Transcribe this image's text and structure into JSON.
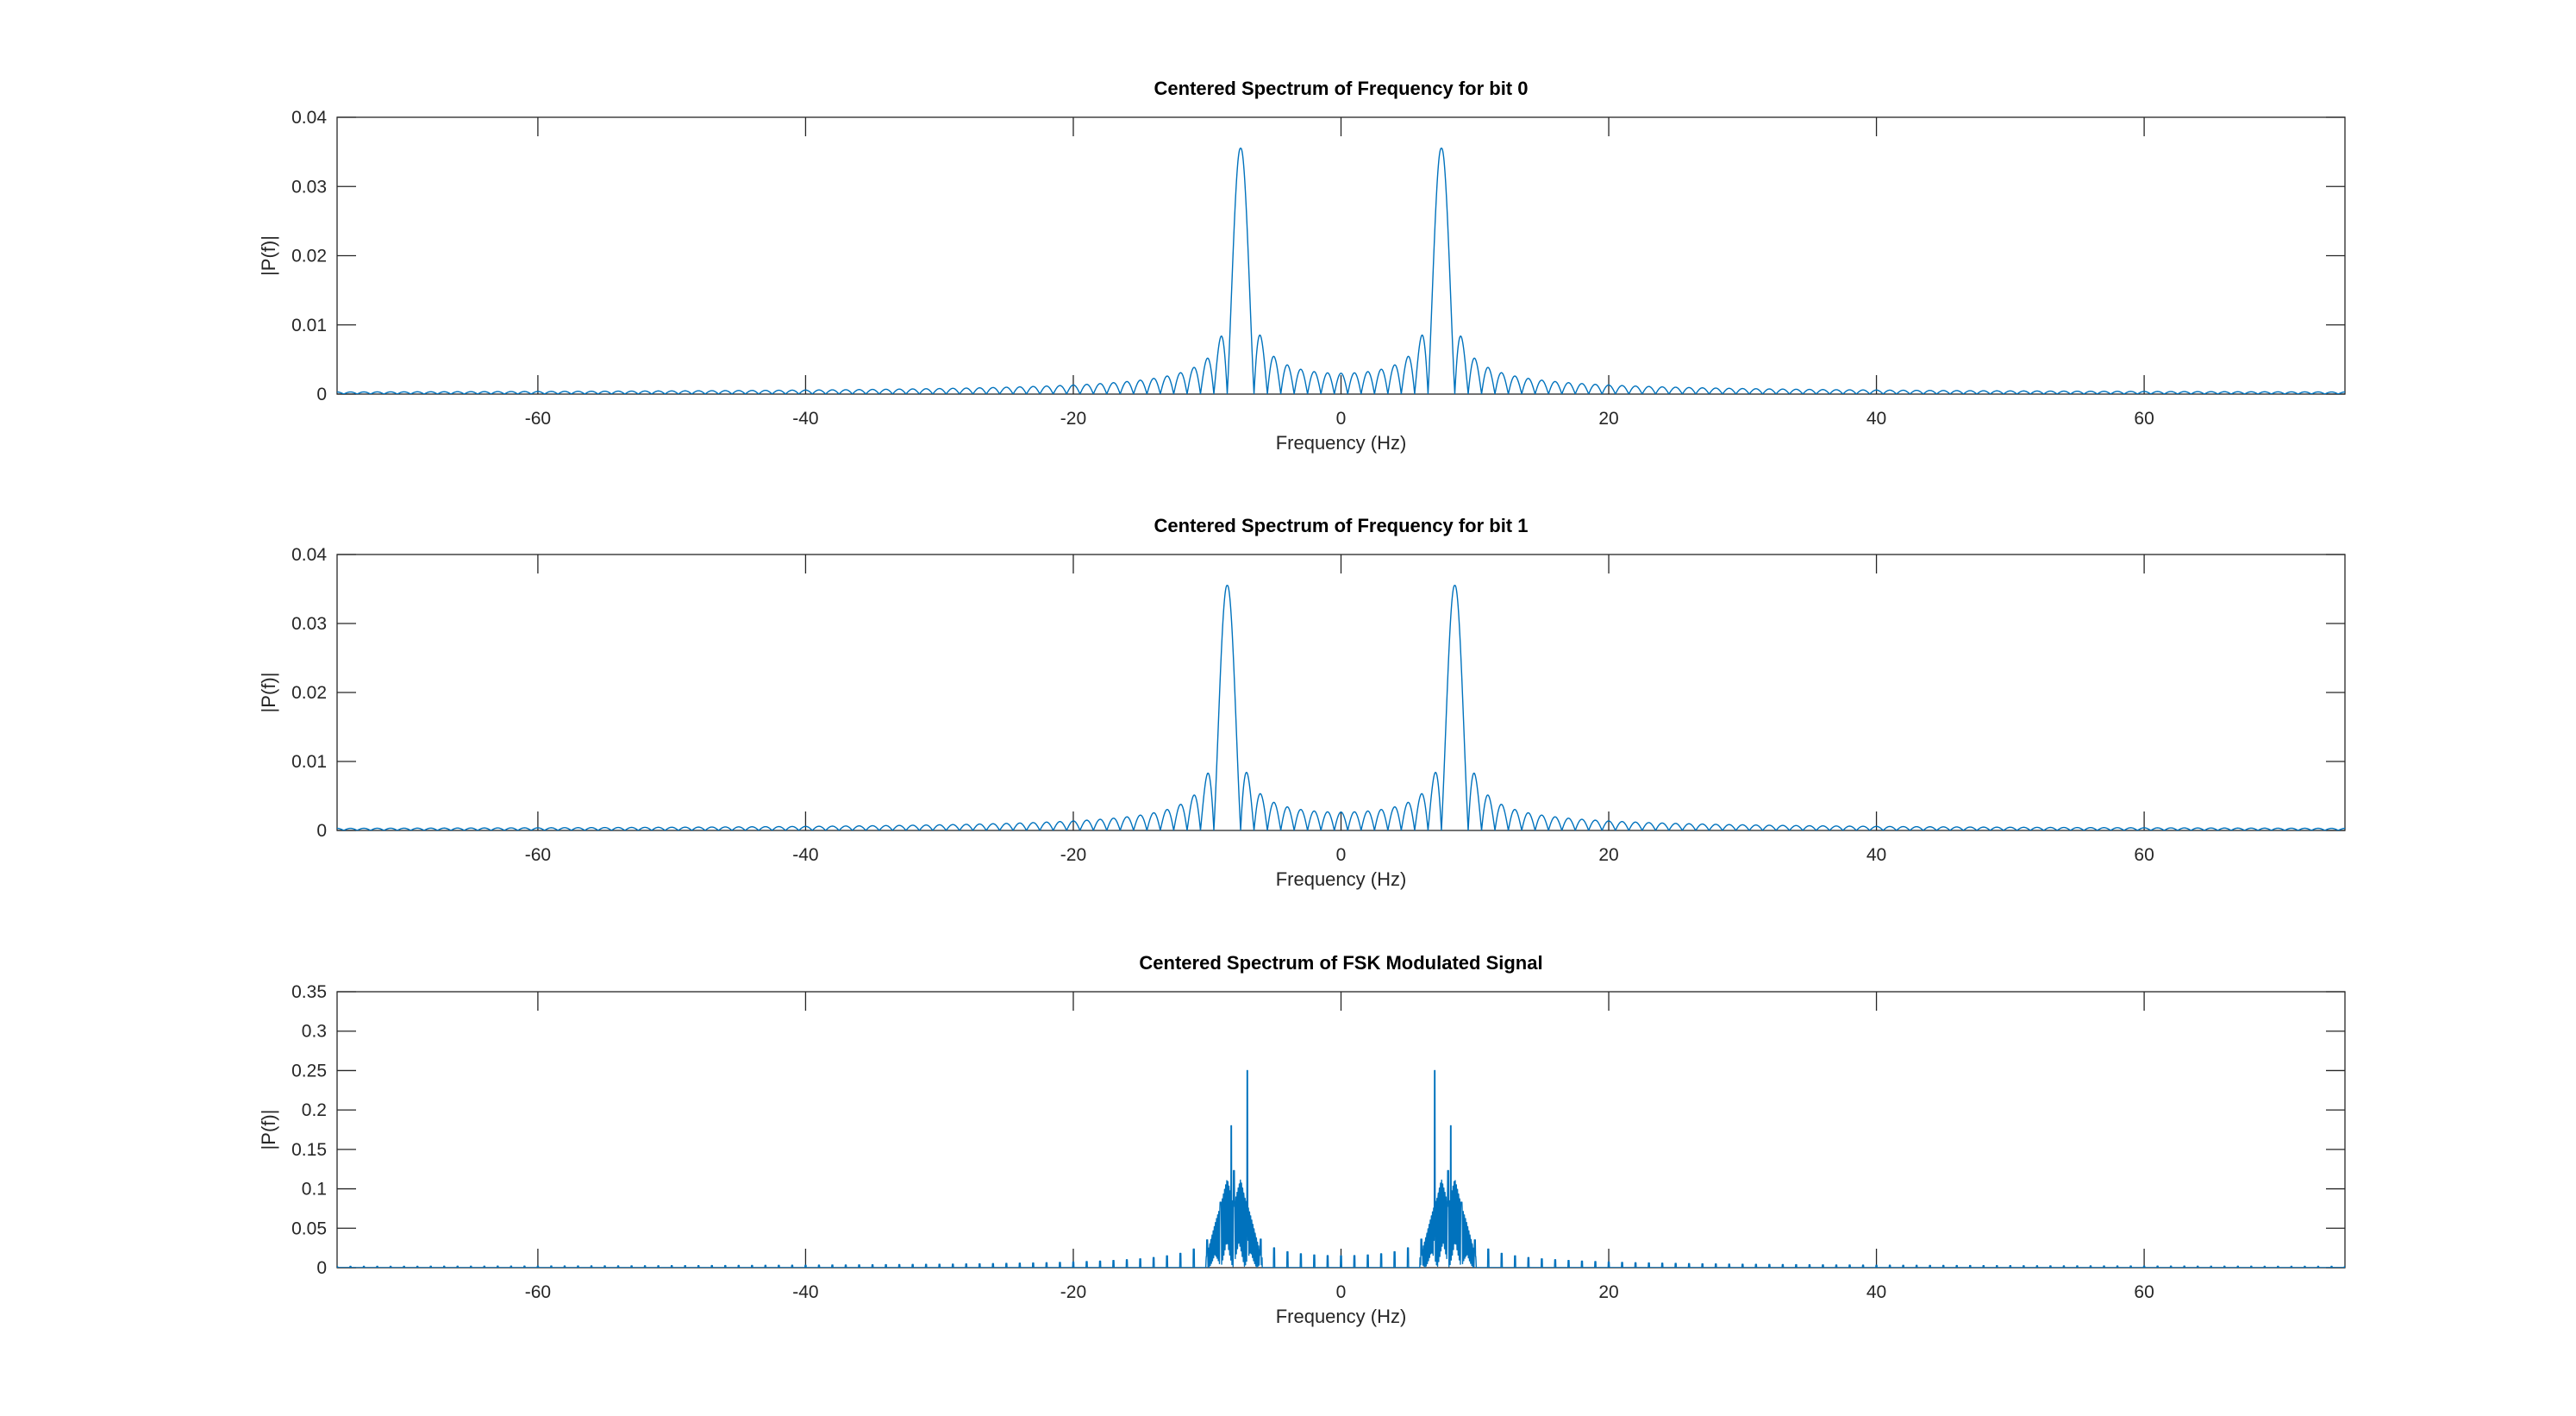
{
  "figure": {
    "background": "#ffffff",
    "line_color": "#0072BD",
    "axis_color": "#262626"
  },
  "chart_data": [
    {
      "type": "line",
      "title": "Centered Spectrum of Frequency for bit 0",
      "xlabel": "Frequency (Hz)",
      "ylabel": "|P(f)|",
      "xlim": [
        -75,
        75
      ],
      "ylim": [
        0,
        0.04
      ],
      "xticks": [
        -60,
        -40,
        -20,
        0,
        20,
        40,
        60
      ],
      "xtick_labels": [
        "-60",
        "-40",
        "-20",
        "0",
        "20",
        "40",
        "60"
      ],
      "yticks": [
        0,
        0.01,
        0.02,
        0.03,
        0.04
      ],
      "ytick_labels": [
        "0",
        "0.01",
        "0.02",
        "0.03",
        "0.04"
      ],
      "series": [
        {
          "name": "|P(f)|",
          "shape": "sinc_pair",
          "carrier_hz": 7.5,
          "peak": 0.0355,
          "null_spacing_hz": 1.0
        }
      ]
    },
    {
      "type": "line",
      "title": "Centered Spectrum of Frequency for bit 1",
      "xlabel": "Frequency (Hz)",
      "ylabel": "|P(f)|",
      "xlim": [
        -75,
        75
      ],
      "ylim": [
        0,
        0.04
      ],
      "xticks": [
        -60,
        -40,
        -20,
        0,
        20,
        40,
        60
      ],
      "xtick_labels": [
        "-60",
        "-40",
        "-20",
        "0",
        "20",
        "40",
        "60"
      ],
      "yticks": [
        0,
        0.01,
        0.02,
        0.03,
        0.04
      ],
      "ytick_labels": [
        "0",
        "0.01",
        "0.02",
        "0.03",
        "0.04"
      ],
      "series": [
        {
          "name": "|P(f)|",
          "shape": "sinc_pair",
          "carrier_hz": 8.5,
          "peak": 0.0355,
          "null_spacing_hz": 1.0
        }
      ]
    },
    {
      "type": "line",
      "title": "Centered Spectrum of FSK Modulated Signal",
      "xlabel": "Frequency (Hz)",
      "ylabel": "|P(f)|",
      "xlim": [
        -75,
        75
      ],
      "ylim": [
        0,
        0.35
      ],
      "xticks": [
        -60,
        -40,
        -20,
        0,
        20,
        40,
        60
      ],
      "xtick_labels": [
        "-60",
        "-40",
        "-20",
        "0",
        "20",
        "40",
        "60"
      ],
      "yticks": [
        0,
        0.05,
        0.1,
        0.15,
        0.2,
        0.25,
        0.3,
        0.35
      ],
      "ytick_labels": [
        "0",
        "0.05",
        "0.1",
        "0.15",
        "0.2",
        "0.25",
        "0.3",
        "0.35"
      ],
      "series": [
        {
          "name": "|P(f)|",
          "shape": "fsk_spikes",
          "carriers_hz": [
            7.5,
            8.5
          ],
          "peak": 0.25,
          "spike_spacing_hz": 1.0
        }
      ]
    }
  ]
}
